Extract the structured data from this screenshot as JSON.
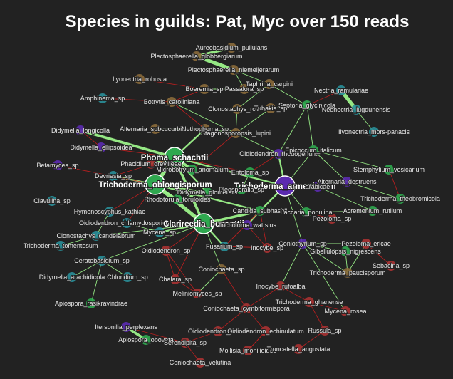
{
  "title": "Species in guilds: Pat, Myc over 150 reads",
  "colors": {
    "background": "#222222",
    "edge_positive": "#9cf28a",
    "edge_negative": "#cc1f1f",
    "node_green": "#2fa84f",
    "node_brown": "#8a6a3b",
    "node_purple": "#5b2bb0",
    "node_teal": "#2a8f99",
    "node_red": "#a83232"
  },
  "nodes": [
    {
      "id": "aureobasidium",
      "label": "Aureobasidium_pullulans",
      "color": "brown"
    },
    {
      "id": "plecto_globb",
      "label": "Plectosphaerella_globbergiarum",
      "color": "brown"
    },
    {
      "id": "plecto_niem",
      "label": "Plectosphaerella_niemeijerarum",
      "color": "brown"
    },
    {
      "id": "ilyo_robusta",
      "label": "Ilyonectria_robusta",
      "color": "brown"
    },
    {
      "id": "taphrina",
      "label": "Taphrina_carpini",
      "color": "brown"
    },
    {
      "id": "boeremia",
      "label": "Boeremia_sp",
      "color": "brown"
    },
    {
      "id": "passalora",
      "label": "Passalora_sp",
      "color": "brown"
    },
    {
      "id": "nectria",
      "label": "Nectria_ramulariae",
      "color": "teal"
    },
    {
      "id": "amphinema",
      "label": "Amphinema_sp",
      "color": "teal"
    },
    {
      "id": "botrytis",
      "label": "Botrytis_caroliniana",
      "color": "brown"
    },
    {
      "id": "septoria",
      "label": "Septoria_glycinicola",
      "color": "green"
    },
    {
      "id": "clonostachys_rosea",
      "label": "Clonostachys_rosea",
      "color": "brown"
    },
    {
      "id": "tubakia",
      "label": "Tubakia_sp",
      "color": "brown"
    },
    {
      "id": "neonectria",
      "label": "Neonectria_lugdunensis",
      "color": "teal"
    },
    {
      "id": "didymella_long",
      "label": "Didymella_longicolla",
      "color": "purple"
    },
    {
      "id": "alternaria_subcult",
      "label": "Alternaria_subcucurbitae",
      "color": "brown"
    },
    {
      "id": "nothophoma",
      "label": "Nothophoma_sp",
      "color": "brown"
    },
    {
      "id": "stagonosporopsis",
      "label": "Stagonosporopsis_lupini",
      "color": "brown"
    },
    {
      "id": "ilyo_mors",
      "label": "Ilyonectria_mors-panacis",
      "color": "teal"
    },
    {
      "id": "didymella_ellip",
      "label": "Didymella_ellipsoidea",
      "color": "purple"
    },
    {
      "id": "oidiodendron_rhod",
      "label": "Oidiodendron_rhodogenum",
      "color": "purple"
    },
    {
      "id": "epicoccum",
      "label": "Epicoccum_italicum",
      "color": "green"
    },
    {
      "id": "phoma",
      "label": "Phoma_schachtii",
      "color": "green",
      "big": true
    },
    {
      "id": "phacidium",
      "label": "Phacidium_grevilleae",
      "color": "red"
    },
    {
      "id": "betamyces",
      "label": "Betamyces_sp",
      "color": "purple"
    },
    {
      "id": "microbotryum",
      "label": "Microbotryum_anomalum",
      "color": "green"
    },
    {
      "id": "stemphylium",
      "label": "Stemphylium_vesicarium",
      "color": "green"
    },
    {
      "id": "devriesia",
      "label": "Devriesia_sp",
      "color": "teal"
    },
    {
      "id": "entoloma",
      "label": "Entoloma_sp",
      "color": "green"
    },
    {
      "id": "trichoderma_obl",
      "label": "Trichoderma_oblongisporum",
      "color": "green",
      "big": true
    },
    {
      "id": "didymella_glom",
      "label": "Didymella_glomerata",
      "color": "green"
    },
    {
      "id": "trichoderma_arm",
      "label": "Trichoderma_armeniacum",
      "color": "purple",
      "big": true
    },
    {
      "id": "alternaria_dest",
      "label": "Alternaria_destruens",
      "color": "purple"
    },
    {
      "id": "pleosporalia",
      "label": "Pleosporalia_sp",
      "color": "green"
    },
    {
      "id": "arabicae",
      "label": "arabicae",
      "color": "purple"
    },
    {
      "id": "rhodotorula",
      "label": "Rhodotorula_toruloides",
      "color": "green"
    },
    {
      "id": "clavulina",
      "label": "Clavulina_sp",
      "color": "teal"
    },
    {
      "id": "trichoderma_theo",
      "label": "Trichoderma_theobromicola",
      "color": "green"
    },
    {
      "id": "hymenoscyphus",
      "label": "Hymenoscyphus_kathiae",
      "color": "teal"
    },
    {
      "id": "candida",
      "label": "Candida_subhashii",
      "color": "green"
    },
    {
      "id": "laccaria",
      "label": "Laccaria_populina",
      "color": "green"
    },
    {
      "id": "acremonium",
      "label": "Acremonium_rutilum",
      "color": "green"
    },
    {
      "id": "oidio_chlamy",
      "label": "Oidiodendron_chlamydosporicum",
      "color": "teal"
    },
    {
      "id": "pezoloma_sp",
      "label": "Pezoloma_sp",
      "color": "red"
    },
    {
      "id": "clarireedia",
      "label": "Clarireedia_bennettii",
      "color": "green",
      "big": true
    },
    {
      "id": "mycena_sp",
      "label": "Mycena_sp",
      "color": "teal"
    },
    {
      "id": "tricholoma",
      "label": "Tricholoma_wattsius",
      "color": "purple"
    },
    {
      "id": "clonostachys_cand",
      "label": "Clonostachys_candelabrum",
      "color": "teal"
    },
    {
      "id": "trichoderma_tom",
      "label": "Trichoderma_tomentosum",
      "color": "teal"
    },
    {
      "id": "coniothyrium",
      "label": "Coniothyrium_sp",
      "color": "purple"
    },
    {
      "id": "pezoloma_ericae",
      "label": "Pezoloma_ericae",
      "color": "red"
    },
    {
      "id": "fusarium",
      "label": "Fusarium_sp",
      "color": "teal"
    },
    {
      "id": "inocybe_sp",
      "label": "Inocybe_sp",
      "color": "red"
    },
    {
      "id": "gibellulopsis",
      "label": "Gibellulopsis_nigrescens",
      "color": "green"
    },
    {
      "id": "oidiodendron_sp",
      "label": "Oidiodendron_sp",
      "color": "red"
    },
    {
      "id": "ceratobasidium",
      "label": "Ceratobasidium_sp",
      "color": "teal"
    },
    {
      "id": "sebacina",
      "label": "Sebacina_sp",
      "color": "red"
    },
    {
      "id": "coniochaeta_sp",
      "label": "Coniochaeta_sp",
      "color": "brown"
    },
    {
      "id": "trichoderma_pauci",
      "label": "Trichoderma_paucisporum",
      "color": "brown"
    },
    {
      "id": "didymella_arach",
      "label": "Didymella_arachidicola",
      "color": "teal"
    },
    {
      "id": "chloridium",
      "label": "Chloridium_sp",
      "color": "teal"
    },
    {
      "id": "chalara",
      "label": "Chalara_sp",
      "color": "red"
    },
    {
      "id": "inocybe_ruf",
      "label": "Inocybe_rufoalba",
      "color": "red"
    },
    {
      "id": "meliniomyces",
      "label": "Meliniomyces_sp",
      "color": "red"
    },
    {
      "id": "apiospora_ras",
      "label": "Apiospora_rasikravindrae",
      "color": "green"
    },
    {
      "id": "trichoderma_ghan",
      "label": "Trichoderma_ghanense",
      "color": "red"
    },
    {
      "id": "coniochaeta_cymb",
      "label": "Coniochaeta_cymbiformispora",
      "color": "red"
    },
    {
      "id": "mycena_rosea",
      "label": "Mycena_rosea",
      "color": "red"
    },
    {
      "id": "itersonilia",
      "label": "Itersonilia_perplexans",
      "color": "purple"
    },
    {
      "id": "oidio_pezzii",
      "label": "Oidiodendron_pezizii",
      "color": "red"
    },
    {
      "id": "oidio_echin",
      "label": "Oidiodendron_echinulatum",
      "color": "red"
    },
    {
      "id": "russula",
      "label": "Russula_sp",
      "color": "red"
    },
    {
      "id": "apiospora_obov",
      "label": "Apiospora_obovata",
      "color": "green"
    },
    {
      "id": "serendipita",
      "label": "Serendipita_sp",
      "color": "red"
    },
    {
      "id": "mollisia",
      "label": "Mollisia_monilioides",
      "color": "red"
    },
    {
      "id": "truncatella",
      "label": "Truncatella_angustata",
      "color": "red"
    },
    {
      "id": "coniochaeta_vel",
      "label": "Coniochaeta_velutina",
      "color": "red"
    }
  ],
  "edges": [
    [
      "aureobasidium",
      "plecto_globb",
      "pos",
      3
    ],
    [
      "plecto_globb",
      "plecto_niem",
      "pos",
      4
    ],
    [
      "plecto_niem",
      "taphrina",
      "pos",
      1
    ],
    [
      "plecto_niem",
      "passalora",
      "pos",
      1
    ],
    [
      "boeremia",
      "passalora",
      "pos",
      1
    ],
    [
      "boeremia",
      "botrytis",
      "neg",
      1
    ],
    [
      "taphrina",
      "clonostachys_rosea",
      "pos",
      1
    ],
    [
      "taphrina",
      "septoria",
      "pos",
      1
    ],
    [
      "nectria",
      "neonectria",
      "pos",
      4
    ],
    [
      "neonectria",
      "ilyo_mors",
      "pos",
      1
    ],
    [
      "nectria",
      "septoria",
      "neg",
      1
    ],
    [
      "ilyo_robusta",
      "boeremia",
      "neg",
      1
    ],
    [
      "amphinema",
      "botrytis",
      "neg",
      1
    ],
    [
      "botrytis",
      "nothophoma",
      "neg",
      1
    ],
    [
      "botrytis",
      "stagonosporopsis",
      "pos",
      1
    ],
    [
      "clonostachys_rosea",
      "stagonosporopsis",
      "pos",
      1
    ],
    [
      "tubakia",
      "septoria",
      "pos",
      1
    ],
    [
      "tubakia",
      "stagonosporopsis",
      "pos",
      1
    ],
    [
      "septoria",
      "epicoccum",
      "pos",
      1
    ],
    [
      "septoria",
      "oidiodendron_rhod",
      "pos",
      1
    ],
    [
      "didymella_long",
      "phoma",
      "pos",
      3
    ],
    [
      "didymella_long",
      "didymella_ellip",
      "neg",
      1
    ],
    [
      "didymella_ellip",
      "phoma",
      "neg",
      1
    ],
    [
      "alternaria_subcult",
      "nothophoma",
      "pos",
      1
    ],
    [
      "nothophoma",
      "phoma",
      "pos",
      2
    ],
    [
      "nothophoma",
      "stagonosporopsis",
      "pos",
      1
    ],
    [
      "stagonosporopsis",
      "oidiodendron_rhod",
      "pos",
      1
    ],
    [
      "stagonosporopsis",
      "microbotryum",
      "neg",
      1
    ],
    [
      "phoma",
      "phacidium",
      "pos",
      2
    ],
    [
      "phoma",
      "microbotryum",
      "pos",
      3
    ],
    [
      "phoma",
      "trichoderma_obl",
      "pos",
      4
    ],
    [
      "phoma",
      "entoloma",
      "neg",
      1
    ],
    [
      "phoma",
      "trichoderma_arm",
      "pos",
      2
    ],
    [
      "phoma",
      "didymella_glom",
      "pos",
      2
    ],
    [
      "phoma",
      "clarireedia",
      "pos",
      3
    ],
    [
      "phoma",
      "devriesia",
      "neg",
      1
    ],
    [
      "oidiodendron_rhod",
      "trichoderma_arm",
      "pos",
      2
    ],
    [
      "oidiodendron_rhod",
      "entoloma",
      "neg",
      1
    ],
    [
      "epicoccum",
      "trichoderma_arm",
      "pos",
      1
    ],
    [
      "epicoccum",
      "alternaria_dest",
      "pos",
      1
    ],
    [
      "epicoccum",
      "stemphylium",
      "pos",
      1
    ],
    [
      "stemphylium",
      "trichoderma_theo",
      "neg",
      1
    ],
    [
      "trichoderma_obl",
      "devriesia",
      "pos",
      2
    ],
    [
      "trichoderma_obl",
      "rhodotorula",
      "pos",
      2
    ],
    [
      "trichoderma_obl",
      "clarireedia",
      "pos",
      4
    ],
    [
      "trichoderma_obl",
      "didymella_glom",
      "pos",
      2
    ],
    [
      "trichoderma_obl",
      "hymenoscyphus",
      "neg",
      1
    ],
    [
      "trichoderma_obl",
      "betamyces",
      "neg",
      1
    ],
    [
      "trichoderma_obl",
      "oidio_chlamy",
      "neg",
      1
    ],
    [
      "trichoderma_obl",
      "candida",
      "pos",
      2
    ],
    [
      "trichoderma_arm",
      "alternaria_dest",
      "pos",
      1
    ],
    [
      "trichoderma_arm",
      "arabicae",
      "pos",
      1
    ],
    [
      "trichoderma_arm",
      "pleosporalia",
      "pos",
      1
    ],
    [
      "trichoderma_arm",
      "candida",
      "pos",
      2
    ],
    [
      "trichoderma_arm",
      "laccaria",
      "pos",
      1
    ],
    [
      "trichoderma_arm",
      "coniothyrium",
      "pos",
      1
    ],
    [
      "alternaria_dest",
      "trichoderma_theo",
      "pos",
      1
    ],
    [
      "arabicae",
      "acremonium",
      "pos",
      1
    ],
    [
      "laccaria",
      "pezoloma_sp",
      "neg",
      1
    ],
    [
      "laccaria",
      "acremonium",
      "pos",
      1
    ],
    [
      "clarireedia",
      "mycena_sp",
      "pos",
      2
    ],
    [
      "clarireedia",
      "tricholoma",
      "pos",
      2
    ],
    [
      "clarireedia",
      "fusarium",
      "pos",
      2
    ],
    [
      "clarireedia",
      "candida",
      "pos",
      3
    ],
    [
      "clarireedia",
      "oidiodendron_sp",
      "neg",
      1
    ],
    [
      "clarireedia",
      "coniochaeta_sp",
      "pos",
      1
    ],
    [
      "clarireedia",
      "chalara",
      "neg",
      1
    ],
    [
      "clarireedia",
      "ceratobasidium",
      "pos",
      1
    ],
    [
      "clarireedia",
      "clonostachys_cand",
      "pos",
      1
    ],
    [
      "candida",
      "tricholoma",
      "pos",
      2
    ],
    [
      "candida",
      "inocybe_sp",
      "neg",
      1
    ],
    [
      "candida",
      "fusarium",
      "neg",
      1
    ],
    [
      "tricholoma",
      "inocybe_sp",
      "neg",
      1
    ],
    [
      "coniothyrium",
      "gibellulopsis",
      "pos",
      1
    ],
    [
      "coniothyrium",
      "pezoloma_ericae",
      "pos",
      1
    ],
    [
      "coniothyrium",
      "trichoderma_pauci",
      "pos",
      1
    ],
    [
      "coniothyrium",
      "inocybe_ruf",
      "pos",
      1
    ],
    [
      "coniothyrium",
      "mycena_rosea",
      "pos",
      1
    ],
    [
      "pezoloma_ericae",
      "sebacina",
      "neg",
      1
    ],
    [
      "pezoloma_ericae",
      "trichoderma_pauci",
      "pos",
      1
    ],
    [
      "gibellulopsis",
      "trichoderma_pauci",
      "pos",
      1
    ],
    [
      "clonostachys_cand",
      "trichoderma_tom",
      "pos",
      1
    ],
    [
      "ceratobasidium",
      "didymella_arach",
      "pos",
      1
    ],
    [
      "ceratobasidium",
      "chloridium",
      "pos",
      1
    ],
    [
      "ceratobasidium",
      "apiospora_ras",
      "pos",
      1
    ],
    [
      "hymenoscyphus",
      "clonostachys_cand",
      "pos",
      1
    ],
    [
      "oidio_chlamy",
      "mycena_sp",
      "pos",
      1
    ],
    [
      "oidiodendron_sp",
      "chalara",
      "neg",
      1
    ],
    [
      "oidiodendron_sp",
      "meliniomyces",
      "neg",
      1
    ],
    [
      "coniochaeta_sp",
      "coniochaeta_cymb",
      "neg",
      1
    ],
    [
      "coniochaeta_sp",
      "meliniomyces",
      "pos",
      1
    ],
    [
      "inocybe_ruf",
      "trichoderma_ghan",
      "neg",
      1
    ],
    [
      "inocybe_ruf",
      "coniochaeta_cymb",
      "neg",
      1
    ],
    [
      "trichoderma_ghan",
      "russula",
      "neg",
      1
    ],
    [
      "trichoderma_ghan",
      "mycena_rosea",
      "neg",
      1
    ],
    [
      "coniochaeta_cymb",
      "oidio_echin",
      "neg",
      1
    ],
    [
      "coniochaeta_cymb",
      "oidio_pezzii",
      "neg",
      1
    ],
    [
      "oidio_pezzii",
      "serendipita",
      "neg",
      1
    ],
    [
      "oidio_echin",
      "mollisia",
      "neg",
      1
    ],
    [
      "russula",
      "truncatella",
      "neg",
      1
    ],
    [
      "itersonilia",
      "apiospora_obov",
      "pos",
      3
    ],
    [
      "itersonilia",
      "serendipita",
      "neg",
      1
    ],
    [
      "serendipita",
      "coniochaeta_vel",
      "neg",
      1
    ],
    [
      "oidio_echin",
      "mollisia",
      "neg",
      1
    ],
    [
      "chalara",
      "meliniomyces",
      "neg",
      1
    ],
    [
      "fusarium",
      "inocybe_sp",
      "neg",
      1
    ],
    [
      "didymella_glom",
      "rhodotorula",
      "pos",
      1
    ],
    [
      "entoloma",
      "pleosporalia",
      "pos",
      1
    ]
  ]
}
